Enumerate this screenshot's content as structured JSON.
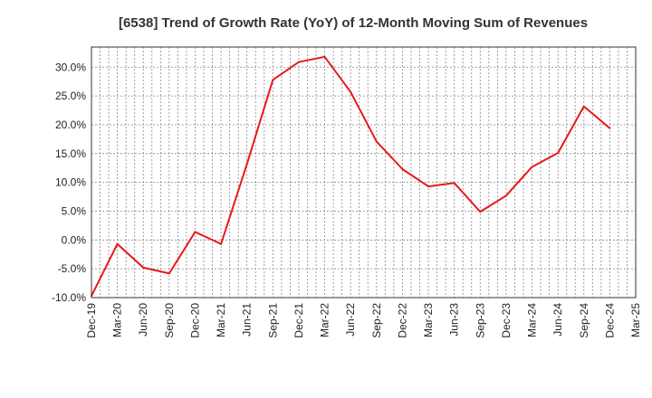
{
  "chart_data": {
    "type": "line",
    "title": "[6538]  Trend of Growth Rate (YoY) of 12-Month Moving Sum of Revenues",
    "xlabel": "",
    "ylabel": "",
    "x_ticks": [
      "Dec-19",
      "Mar-20",
      "Jun-20",
      "Sep-20",
      "Dec-20",
      "Mar-21",
      "Jun-21",
      "Sep-21",
      "Dec-21",
      "Mar-22",
      "Jun-22",
      "Sep-22",
      "Dec-22",
      "Mar-23",
      "Jun-23",
      "Sep-23",
      "Dec-23",
      "Mar-24",
      "Jun-24",
      "Sep-24",
      "Dec-24",
      "Mar-25"
    ],
    "y_ticks": [
      "-10.0%",
      "-5.0%",
      "0.0%",
      "5.0%",
      "10.0%",
      "15.0%",
      "20.0%",
      "25.0%",
      "30.0%"
    ],
    "ylim": [
      -10,
      33.5
    ],
    "grid": true,
    "series": [
      {
        "color": "#e8191c",
        "x": [
          "Dec-19",
          "Mar-20",
          "Jun-20",
          "Sep-20",
          "Dec-20",
          "Mar-21",
          "Jun-21",
          "Sep-21",
          "Dec-21",
          "Mar-22",
          "Jun-22",
          "Sep-22",
          "Dec-22",
          "Mar-23",
          "Jun-23",
          "Sep-23",
          "Dec-23",
          "Mar-24",
          "Jun-24",
          "Sep-24",
          "Dec-24"
        ],
        "values": [
          -9.7,
          -0.7,
          -4.8,
          -5.8,
          1.4,
          -0.7,
          13.2,
          27.8,
          30.9,
          31.8,
          25.7,
          17.1,
          12.3,
          9.3,
          9.9,
          4.9,
          7.7,
          12.7,
          15.1,
          23.2,
          19.4
        ]
      }
    ]
  }
}
